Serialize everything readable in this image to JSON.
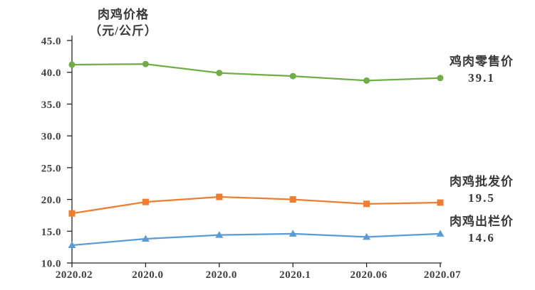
{
  "chart": {
    "title_line1": "肉鸡价格",
    "title_line2": "（元/公斤）"
  },
  "chart_data": {
    "type": "line",
    "title": "肉鸡价格（元/公斤）",
    "categories": [
      "2020.02",
      "2020.0",
      "2020.0",
      "2020.1",
      "2020.06",
      "2020.07"
    ],
    "xlabel": "",
    "ylabel": "元/公斤",
    "y_axis": {
      "min": 10.0,
      "max": 45.0,
      "tick_step": 5.0,
      "tick_labels": [
        "45.0",
        "40.0",
        "35.0",
        "30.0",
        "25.0",
        "20.0",
        "15.0",
        "10.0"
      ]
    },
    "grid": false,
    "legend_position": "right-annotations",
    "series": [
      {
        "name": "鸡肉零售价",
        "color": "#70AD47",
        "marker": "circle",
        "values": [
          41.2,
          41.3,
          39.9,
          39.4,
          38.7,
          39.1
        ],
        "end_label": "39.1"
      },
      {
        "name": "肉鸡批发价",
        "color": "#ED7D31",
        "marker": "square",
        "values": [
          17.8,
          19.6,
          20.4,
          20.0,
          19.3,
          19.5
        ],
        "end_label": "19.5"
      },
      {
        "name": "肉鸡出栏价",
        "color": "#5B9BD5",
        "marker": "triangle",
        "values": [
          12.8,
          13.8,
          14.4,
          14.6,
          14.1,
          14.6
        ],
        "end_label": "14.6"
      }
    ]
  },
  "colors": {
    "axis": "#262626",
    "text": "#404040",
    "background": "#ffffff"
  }
}
